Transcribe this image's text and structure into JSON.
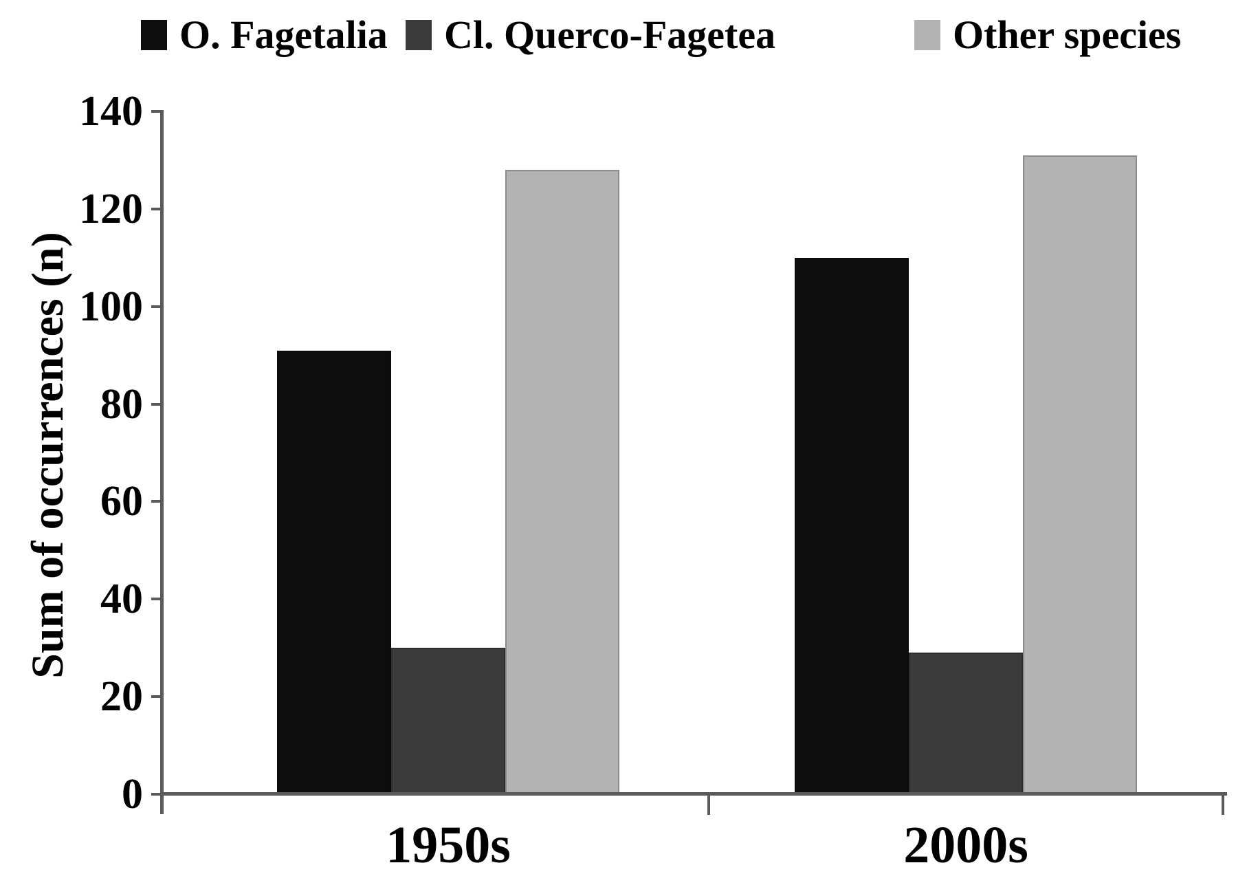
{
  "chart_data": {
    "type": "bar",
    "title": "",
    "xlabel": "",
    "ylabel": "Sum of occurrences (n)",
    "categories": [
      "1950s",
      "2000s"
    ],
    "series": [
      {
        "name": "O. Fagetalia",
        "color": "#0d0d0d",
        "values": [
          91,
          110
        ]
      },
      {
        "name": "Cl. Querco-Fagetea",
        "color": "#3b3b3b",
        "values": [
          30,
          29
        ]
      },
      {
        "name": "Other species",
        "color": "#b3b3b3",
        "values": [
          128,
          131
        ]
      }
    ],
    "ylim": [
      0,
      140
    ],
    "ytick_step": 20,
    "yticks": [
      0,
      20,
      40,
      60,
      80,
      100,
      120,
      140
    ],
    "grid": false,
    "legend_position": "top",
    "axis_color": "#5a5a5a",
    "text_color": "#000000",
    "background_color": "#ffffff"
  }
}
